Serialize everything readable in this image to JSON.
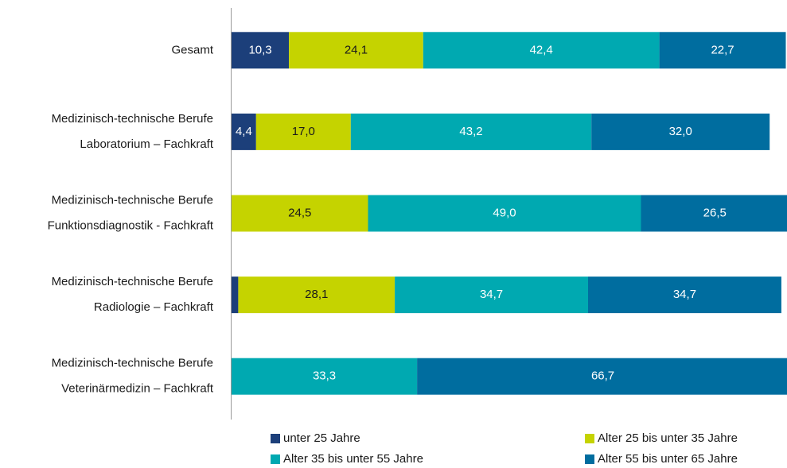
{
  "chart_data": {
    "type": "stacked-barh",
    "categories": [
      [
        "Gesamt"
      ],
      [
        "Medizinisch-technische Berufe",
        "Laboratorium – Fachkraft"
      ],
      [
        "Medizinisch-technische Berufe",
        "Funktionsdiagnostik - Fachkraft"
      ],
      [
        "Medizinisch-technische Berufe",
        "Radiologie – Fachkraft"
      ],
      [
        "Medizinisch-technische Berufe",
        "Veterinärmedizin – Fachkraft"
      ]
    ],
    "xlim": [
      0,
      100
    ],
    "series": [
      {
        "name": "unter 25 Jahre",
        "color": "#1c3f7a",
        "label_color": "#ffffff",
        "values": [
          10.3,
          4.4,
          null,
          1.2,
          null
        ],
        "value_labels": [
          "10,3",
          "4,4",
          null,
          null,
          null
        ]
      },
      {
        "name": "Alter 25 bis unter 35 Jahre",
        "color": "#c5d300",
        "label_color": "#1a1a1a",
        "values": [
          24.1,
          17.0,
          24.5,
          28.1,
          null
        ],
        "value_labels": [
          "24,1",
          "17,0",
          "24,5",
          "28,1",
          null
        ]
      },
      {
        "name": "Alter 35 bis unter 55 Jahre",
        "color": "#00a9b1",
        "label_color": "#ffffff",
        "values": [
          42.4,
          43.2,
          49.0,
          34.7,
          33.3
        ],
        "value_labels": [
          "42,4",
          "43,2",
          "49,0",
          "34,7",
          "33,3"
        ]
      },
      {
        "name": "Alter 55 bis unter 65 Jahre",
        "color": "#006d9f",
        "label_color": "#ffffff",
        "values": [
          22.7,
          32.0,
          26.5,
          34.7,
          66.7
        ],
        "value_labels": [
          "22,7",
          "32,0",
          "26,5",
          "34,7",
          "66,7"
        ]
      }
    ]
  }
}
